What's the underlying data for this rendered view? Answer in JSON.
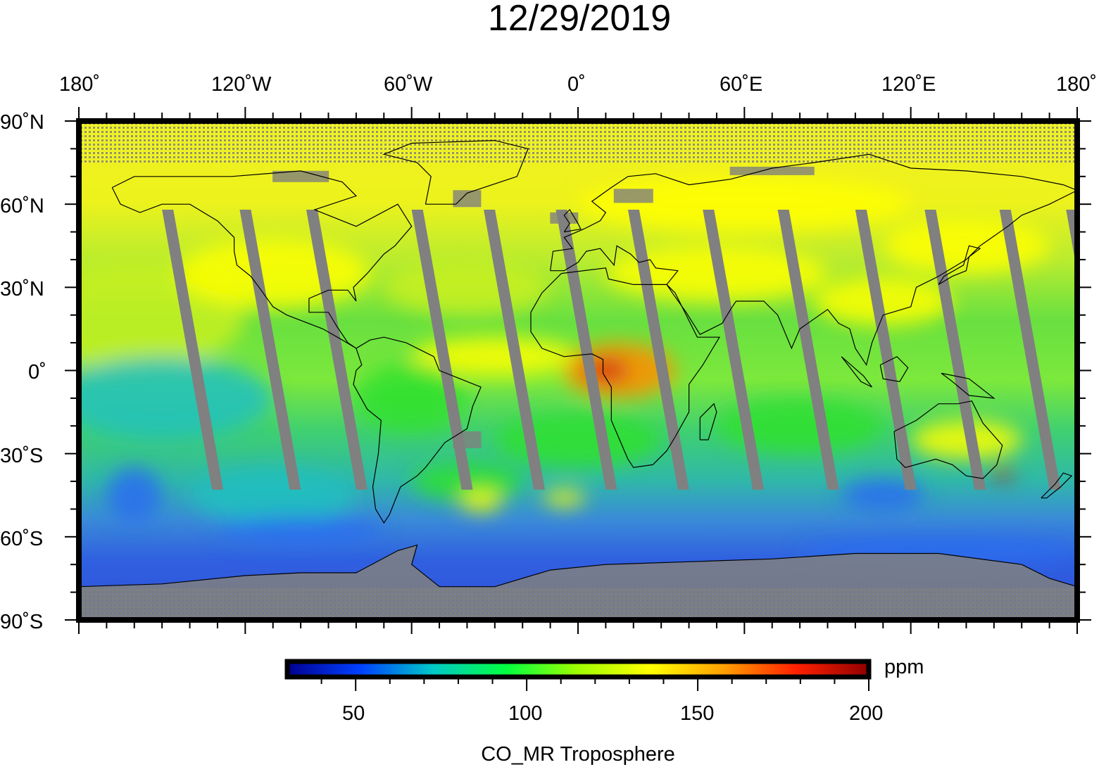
{
  "title": "12/29/2019",
  "map": {
    "top_axis_labels": [
      "180˚",
      "120˚W",
      "60˚W",
      "0˚",
      "60˚E",
      "120˚E",
      "180˚"
    ],
    "left_axis_labels": [
      "90˚N",
      "60˚N",
      "30˚N",
      "0˚",
      "30˚S",
      "60˚S",
      "90˚S"
    ],
    "missing_data_color": "#808080",
    "colors": {
      "deep_blue": "#0000c8",
      "blue": "#2a6cf0",
      "cyan": "#20c0c0",
      "green": "#30e030",
      "yellow_green": "#c8f020",
      "yellow": "#ffff00",
      "orange": "#ff8c00",
      "red": "#d01818"
    }
  },
  "colorbar": {
    "range": [
      30,
      200
    ],
    "ticks": [
      "50",
      "100",
      "150",
      "200"
    ],
    "tick_values": [
      50,
      100,
      150,
      200
    ],
    "unit": "ppm",
    "caption": "CO_MR Troposphere",
    "gradient": [
      "#000090",
      "#0040ff",
      "#00c8c8",
      "#00ff40",
      "#a0ff00",
      "#ffff00",
      "#ffa000",
      "#ff2000",
      "#900000"
    ]
  }
}
